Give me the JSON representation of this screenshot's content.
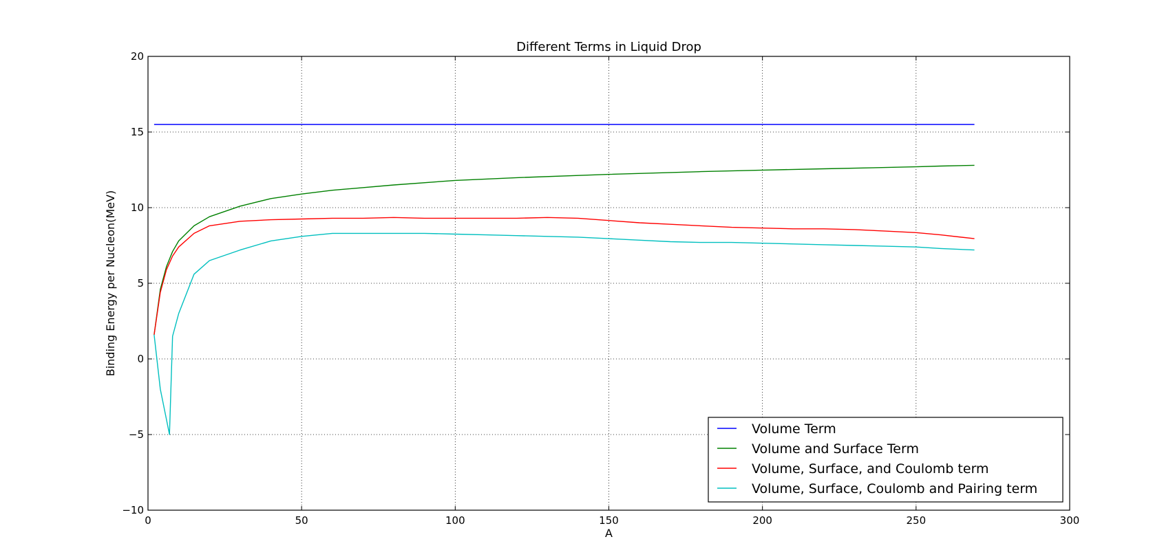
{
  "chart_data": {
    "type": "line",
    "title": "Different Terms in Liquid Drop",
    "xlabel": "A",
    "ylabel": "Binding Energy per Nucleon(MeV)",
    "xlim": [
      0,
      300
    ],
    "ylim": [
      -10,
      20
    ],
    "xticks": [
      0,
      50,
      100,
      150,
      200,
      250,
      300
    ],
    "yticks": [
      -10,
      -5,
      0,
      5,
      10,
      15,
      20
    ],
    "xtick_labels": [
      "0",
      "50",
      "100",
      "150",
      "200",
      "250",
      "300"
    ],
    "ytick_labels": [
      "−10",
      "−5",
      "0",
      "5",
      "10",
      "15",
      "20"
    ],
    "grid": true,
    "legend_position": "lower-right",
    "series": [
      {
        "name": "Volume Term",
        "color": "#0000ff",
        "x": [
          2,
          10,
          50,
          100,
          150,
          200,
          250,
          258,
          269
        ],
        "y": [
          15.5,
          15.5,
          15.5,
          15.5,
          15.5,
          15.5,
          15.5,
          15.5,
          15.5
        ]
      },
      {
        "name": "Volume and Surface Term",
        "color": "#008000",
        "x": [
          2,
          4,
          6,
          8,
          10,
          15,
          20,
          30,
          40,
          50,
          60,
          80,
          100,
          120,
          150,
          180,
          200,
          220,
          250,
          258,
          269
        ],
        "y": [
          1.6,
          4.6,
          6.1,
          7.1,
          7.8,
          8.8,
          9.4,
          10.1,
          10.6,
          10.9,
          11.15,
          11.5,
          11.8,
          11.98,
          12.2,
          12.38,
          12.48,
          12.57,
          12.7,
          12.75,
          12.8
        ]
      },
      {
        "name": "Volume, Surface, and Coulomb term",
        "color": "#ff0000",
        "x": [
          2,
          4,
          6,
          8,
          10,
          15,
          20,
          30,
          40,
          50,
          60,
          70,
          80,
          90,
          100,
          110,
          120,
          130,
          140,
          150,
          160,
          170,
          180,
          190,
          200,
          210,
          220,
          230,
          240,
          250,
          258,
          269
        ],
        "y": [
          1.6,
          4.4,
          5.9,
          6.8,
          7.4,
          8.3,
          8.8,
          9.1,
          9.2,
          9.25,
          9.3,
          9.3,
          9.35,
          9.3,
          9.3,
          9.3,
          9.3,
          9.35,
          9.3,
          9.15,
          9.0,
          8.9,
          8.8,
          8.7,
          8.65,
          8.6,
          8.6,
          8.55,
          8.45,
          8.35,
          8.2,
          7.95
        ]
      },
      {
        "name": "Volume, Surface, Coulomb and Pairing term",
        "color": "#00bfbf",
        "x": [
          2,
          4,
          6,
          7,
          8,
          10,
          15,
          20,
          30,
          40,
          50,
          60,
          70,
          80,
          90,
          100,
          110,
          120,
          130,
          140,
          150,
          160,
          170,
          180,
          190,
          200,
          210,
          220,
          230,
          240,
          250,
          258,
          269
        ],
        "y": [
          1.6,
          -2.0,
          -4.0,
          -5.0,
          1.5,
          3.0,
          5.6,
          6.5,
          7.2,
          7.8,
          8.1,
          8.3,
          8.3,
          8.3,
          8.3,
          8.25,
          8.2,
          8.15,
          8.1,
          8.05,
          7.95,
          7.85,
          7.75,
          7.7,
          7.7,
          7.65,
          7.6,
          7.55,
          7.5,
          7.45,
          7.4,
          7.3,
          7.2
        ]
      }
    ]
  }
}
